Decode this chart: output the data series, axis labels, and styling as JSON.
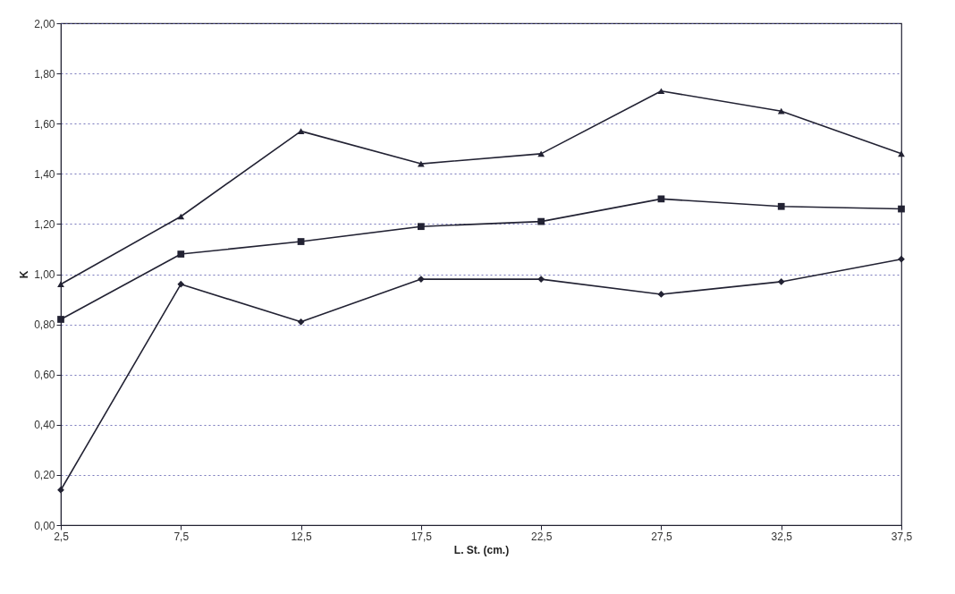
{
  "chart_data": {
    "type": "line",
    "xlabel": "L. St. (cm.)",
    "ylabel": "K",
    "categories": [
      "2,5",
      "7,5",
      "12,5",
      "17,5",
      "22,5",
      "27,5",
      "32,5",
      "37,5"
    ],
    "series": [
      {
        "color": "#222233",
        "marker": "triangle",
        "values": [
          0.96,
          1.23,
          1.57,
          1.44,
          1.48,
          1.73,
          1.65,
          1.48
        ]
      },
      {
        "color": "#222233",
        "marker": "square",
        "values": [
          0.82,
          1.08,
          1.13,
          1.19,
          1.21,
          1.3,
          1.27,
          1.26
        ]
      },
      {
        "color": "#222233",
        "marker": "diamond",
        "values": [
          0.14,
          0.96,
          0.81,
          0.98,
          0.98,
          0.92,
          0.97,
          1.06
        ]
      }
    ],
    "ylim": [
      0,
      2
    ],
    "yticks": [
      {
        "value": 0,
        "label": "0,00"
      },
      {
        "value": 0.2,
        "label": "0,20"
      },
      {
        "value": 0.4,
        "label": "0,40"
      },
      {
        "value": 0.6,
        "label": "0,60"
      },
      {
        "value": 0.8,
        "label": "0,80"
      },
      {
        "value": 1.0,
        "label": "1,00"
      },
      {
        "value": 1.2,
        "label": "1,20"
      },
      {
        "value": 1.4,
        "label": "1,40"
      },
      {
        "value": 1.6,
        "label": "1,60"
      },
      {
        "value": 1.8,
        "label": "1,80"
      },
      {
        "value": 2.0,
        "label": "2,00"
      }
    ],
    "grid": "y",
    "line_style": "solid"
  }
}
